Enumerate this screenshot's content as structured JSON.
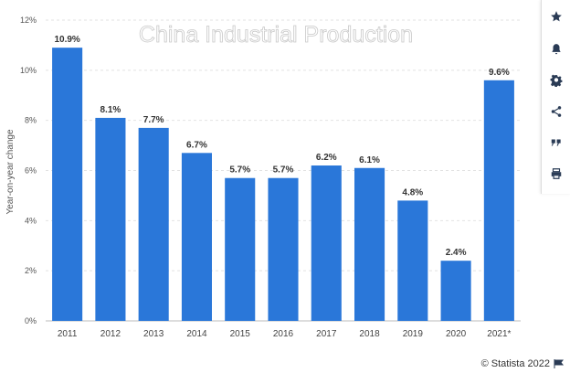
{
  "chart_data": {
    "type": "bar",
    "title": "China Industrial Production",
    "xlabel": "",
    "ylabel": "Year-on-year change",
    "categories": [
      "2011",
      "2012",
      "2013",
      "2014",
      "2015",
      "2016",
      "2017",
      "2018",
      "2019",
      "2020",
      "2021*"
    ],
    "values": [
      10.9,
      8.1,
      7.7,
      6.7,
      5.7,
      5.7,
      6.2,
      6.1,
      4.8,
      2.4,
      9.6
    ],
    "data_labels": [
      "10.9%",
      "8.1%",
      "7.7%",
      "6.7%",
      "5.7%",
      "5.7%",
      "6.2%",
      "6.1%",
      "4.8%",
      "2.4%",
      "9.6%"
    ],
    "y_ticks": [
      0,
      2,
      4,
      6,
      8,
      10,
      12
    ],
    "y_tick_labels": [
      "0%",
      "2%",
      "4%",
      "6%",
      "8%",
      "10%",
      "12%"
    ],
    "ylim": [
      0,
      12
    ],
    "grid": true,
    "bar_color": "#2a77d9"
  },
  "toolbar": {
    "items": [
      {
        "name": "star-icon"
      },
      {
        "name": "bell-icon"
      },
      {
        "name": "gear-icon"
      },
      {
        "name": "share-icon"
      },
      {
        "name": "quote-icon"
      },
      {
        "name": "print-icon"
      }
    ],
    "icon_color": "#2a3b55"
  },
  "credit": {
    "text": "© Statista 2022"
  }
}
